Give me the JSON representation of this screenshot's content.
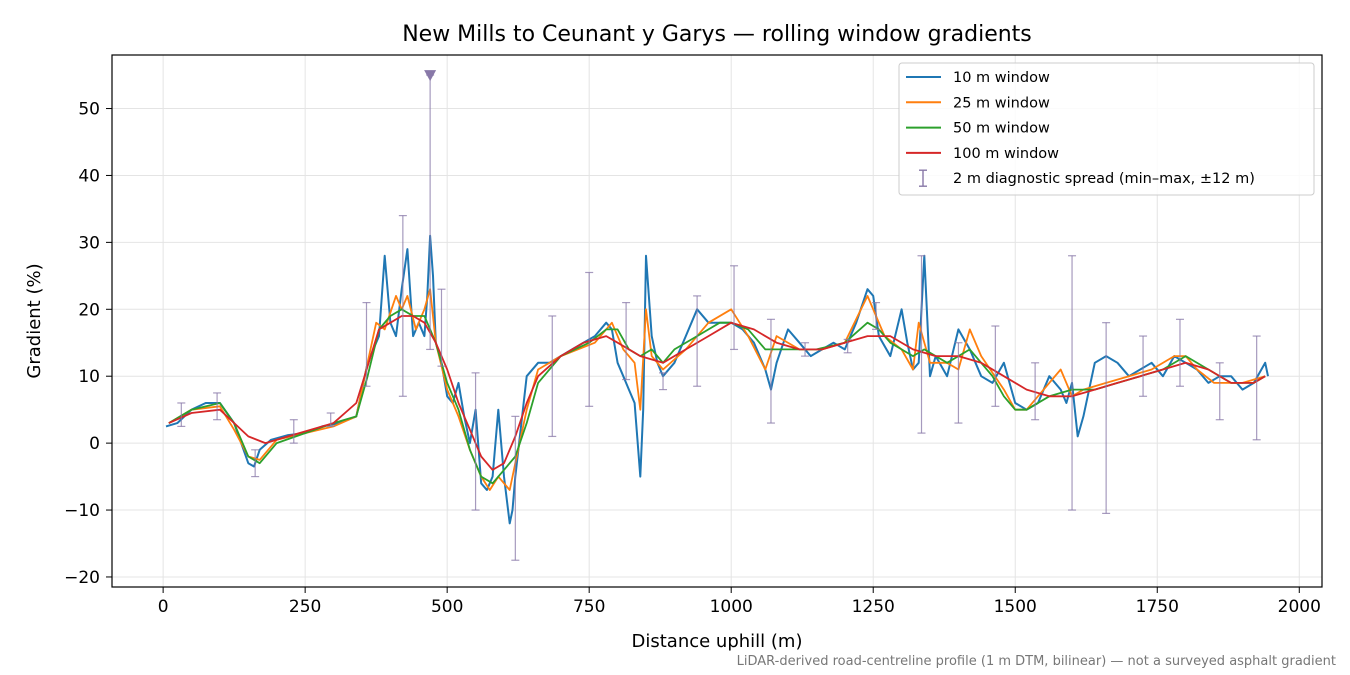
{
  "chart_data": {
    "type": "line",
    "title": "New Mills to Ceunant y Garys — rolling window gradients",
    "xlabel": "Distance uphill (m)",
    "ylabel": "Gradient (%)",
    "xlim": [
      -90,
      2040
    ],
    "ylim": [
      -21.5,
      58
    ],
    "x_ticks": [
      0,
      250,
      500,
      750,
      1000,
      1250,
      1500,
      1750,
      2000
    ],
    "y_ticks": [
      -20,
      -10,
      0,
      10,
      20,
      30,
      40,
      50
    ],
    "grid": true,
    "legend_position": "top-right",
    "footnote": "LiDAR-derived road-centreline profile (1 m DTM, bilinear) — not a surveyed asphalt gradient",
    "clipped_marker": {
      "x": 470,
      "y": 55,
      "color": "#8878a8"
    },
    "series": [
      {
        "name": "10 m window",
        "color": "#1f77b4",
        "x": [
          5,
          25,
          50,
          75,
          100,
          125,
          150,
          160,
          170,
          190,
          220,
          250,
          280,
          310,
          340,
          360,
          370,
          380,
          390,
          400,
          410,
          420,
          430,
          440,
          450,
          460,
          465,
          470,
          475,
          480,
          490,
          500,
          510,
          520,
          530,
          540,
          550,
          560,
          570,
          580,
          590,
          600,
          610,
          615,
          620,
          640,
          660,
          680,
          700,
          720,
          740,
          760,
          780,
          790,
          800,
          810,
          820,
          830,
          840,
          845,
          850,
          860,
          870,
          880,
          900,
          920,
          940,
          960,
          980,
          1000,
          1020,
          1040,
          1060,
          1070,
          1080,
          1100,
          1120,
          1140,
          1160,
          1180,
          1200,
          1220,
          1240,
          1250,
          1260,
          1280,
          1300,
          1310,
          1320,
          1330,
          1340,
          1350,
          1360,
          1380,
          1400,
          1420,
          1440,
          1460,
          1480,
          1500,
          1520,
          1540,
          1560,
          1580,
          1590,
          1600,
          1610,
          1620,
          1640,
          1660,
          1680,
          1700,
          1720,
          1740,
          1760,
          1780,
          1800,
          1820,
          1840,
          1860,
          1880,
          1900,
          1920,
          1940,
          1945
        ],
        "values": [
          2.5,
          3,
          5,
          6,
          6,
          3,
          -3,
          -3.5,
          -1,
          0.5,
          1.2,
          1.5,
          2.5,
          3,
          4,
          12,
          14,
          16,
          28,
          18,
          16,
          23,
          29,
          16,
          18,
          16,
          22,
          31,
          25,
          15,
          12,
          7,
          6,
          9,
          4,
          0,
          5,
          -6,
          -7,
          -5,
          5,
          -5,
          -12,
          -10,
          -5,
          10,
          12,
          12,
          13,
          14,
          15,
          16,
          18,
          17,
          12,
          10,
          8,
          6,
          -5,
          5,
          28,
          16,
          12,
          10,
          12,
          16,
          20,
          18,
          18,
          18,
          17,
          15,
          11,
          8,
          12,
          17,
          15,
          13,
          14,
          15,
          14,
          18,
          23,
          22,
          16,
          13,
          20,
          15,
          11,
          12,
          28,
          10,
          13,
          10,
          17,
          14,
          10,
          9,
          12,
          6,
          5,
          6,
          10,
          8,
          6,
          9,
          1,
          4,
          12,
          13,
          12,
          10,
          11,
          12,
          10,
          13,
          12,
          11,
          9,
          10,
          10,
          8,
          9,
          12,
          10
        ]
      },
      {
        "name": "25 m window",
        "color": "#ff7f0e",
        "x": [
          10,
          50,
          100,
          125,
          150,
          170,
          200,
          250,
          300,
          340,
          360,
          375,
          390,
          410,
          420,
          430,
          445,
          460,
          470,
          480,
          500,
          520,
          540,
          560,
          575,
          590,
          610,
          620,
          640,
          660,
          700,
          760,
          790,
          810,
          830,
          840,
          850,
          860,
          880,
          920,
          960,
          1000,
          1030,
          1060,
          1080,
          1120,
          1160,
          1200,
          1240,
          1250,
          1270,
          1300,
          1320,
          1330,
          1350,
          1380,
          1400,
          1420,
          1440,
          1480,
          1500,
          1520,
          1560,
          1580,
          1600,
          1620,
          1660,
          1700,
          1740,
          1780,
          1800,
          1820,
          1850,
          1900,
          1940
        ],
        "values": [
          3,
          5,
          5.5,
          2,
          -2,
          -2.5,
          0.5,
          1.5,
          2.5,
          4,
          12,
          18,
          17,
          22,
          20,
          22,
          17,
          20,
          23,
          15,
          8,
          4,
          -1,
          -5,
          -7,
          -5,
          -7,
          -3,
          5,
          11,
          13,
          15,
          18,
          14,
          12,
          5,
          20,
          13,
          11,
          14,
          18,
          20,
          16,
          11,
          16,
          14,
          14,
          15,
          22,
          20,
          16,
          14,
          11,
          18,
          12,
          12,
          11,
          17,
          13,
          8,
          5,
          5,
          9,
          11,
          7,
          8,
          9,
          10,
          11,
          13,
          13,
          11,
          9,
          9,
          10
        ]
      },
      {
        "name": "50 m window",
        "color": "#2ca02c",
        "x": [
          10,
          50,
          100,
          125,
          150,
          170,
          200,
          250,
          300,
          340,
          360,
          380,
          400,
          420,
          440,
          460,
          480,
          500,
          520,
          540,
          560,
          580,
          600,
          620,
          640,
          660,
          700,
          750,
          780,
          800,
          820,
          840,
          860,
          880,
          900,
          940,
          980,
          1000,
          1030,
          1060,
          1100,
          1150,
          1200,
          1240,
          1260,
          1280,
          1300,
          1320,
          1340,
          1380,
          1420,
          1460,
          1480,
          1500,
          1520,
          1560,
          1600,
          1640,
          1680,
          1720,
          1760,
          1800,
          1840,
          1880,
          1920,
          1940
        ],
        "values": [
          3,
          5,
          6,
          3,
          -2,
          -3,
          0,
          1.5,
          3,
          4,
          10,
          17,
          19,
          20,
          19,
          19,
          15,
          9,
          5,
          -1,
          -5,
          -6,
          -4,
          -2,
          3,
          9,
          13,
          15,
          17,
          17,
          14,
          13,
          14,
          12,
          14,
          16,
          18,
          18,
          17,
          14,
          14,
          14,
          15,
          18,
          17,
          15,
          14,
          13,
          14,
          12,
          14,
          10,
          7,
          5,
          5,
          7,
          8,
          8,
          9,
          10,
          11,
          13,
          11,
          9,
          9,
          10
        ]
      },
      {
        "name": "100 m window",
        "color": "#d62728",
        "x": [
          10,
          50,
          100,
          150,
          180,
          220,
          260,
          300,
          340,
          380,
          400,
          420,
          440,
          460,
          480,
          500,
          520,
          540,
          560,
          580,
          600,
          620,
          640,
          660,
          700,
          740,
          780,
          800,
          840,
          880,
          920,
          960,
          1000,
          1040,
          1080,
          1120,
          1160,
          1200,
          1240,
          1280,
          1320,
          1360,
          1400,
          1440,
          1480,
          1520,
          1560,
          1600,
          1640,
          1680,
          1720,
          1760,
          1800,
          1840,
          1880,
          1920,
          1940
        ],
        "values": [
          3,
          4.5,
          5,
          1,
          0,
          1,
          2,
          3,
          6,
          17,
          18,
          19,
          19,
          18,
          15,
          11,
          6,
          2,
          -2,
          -4,
          -3,
          1,
          6,
          10,
          13,
          15,
          16,
          15,
          13,
          12,
          14,
          16,
          18,
          17,
          15,
          14,
          14,
          15,
          16,
          16,
          14,
          13,
          13,
          12,
          10,
          8,
          7,
          7,
          8,
          9,
          10,
          11,
          12,
          11,
          9,
          9,
          10
        ]
      },
      {
        "name": "2 m diagnostic spread (min–max, ±12 m)",
        "type": "errorbar",
        "color": "#8878a8",
        "x": [
          32,
          95,
          162,
          230,
          295,
          358,
          422,
          470,
          490,
          550,
          620,
          685,
          750,
          815,
          880,
          940,
          1005,
          1070,
          1130,
          1205,
          1255,
          1335,
          1400,
          1465,
          1535,
          1600,
          1660,
          1725,
          1790,
          1860,
          1925
        ],
        "low": [
          2.5,
          3.5,
          -5,
          0,
          2.5,
          8.5,
          7,
          14,
          11.5,
          -10,
          -17.5,
          1,
          5.5,
          9.5,
          8,
          8.5,
          14,
          3,
          13,
          13.5,
          17,
          1.5,
          3,
          5.5,
          3.5,
          -10,
          -10.5,
          7,
          8.5,
          3.5,
          0.5
        ],
        "high": [
          6,
          7.5,
          -1,
          3.5,
          4.5,
          21,
          34,
          55,
          23,
          10.5,
          4,
          19,
          25.5,
          21,
          10.5,
          22,
          26.5,
          18.5,
          15,
          15.5,
          21,
          28,
          15,
          17.5,
          12,
          28,
          18,
          16,
          18.5,
          12,
          16
        ]
      }
    ]
  }
}
